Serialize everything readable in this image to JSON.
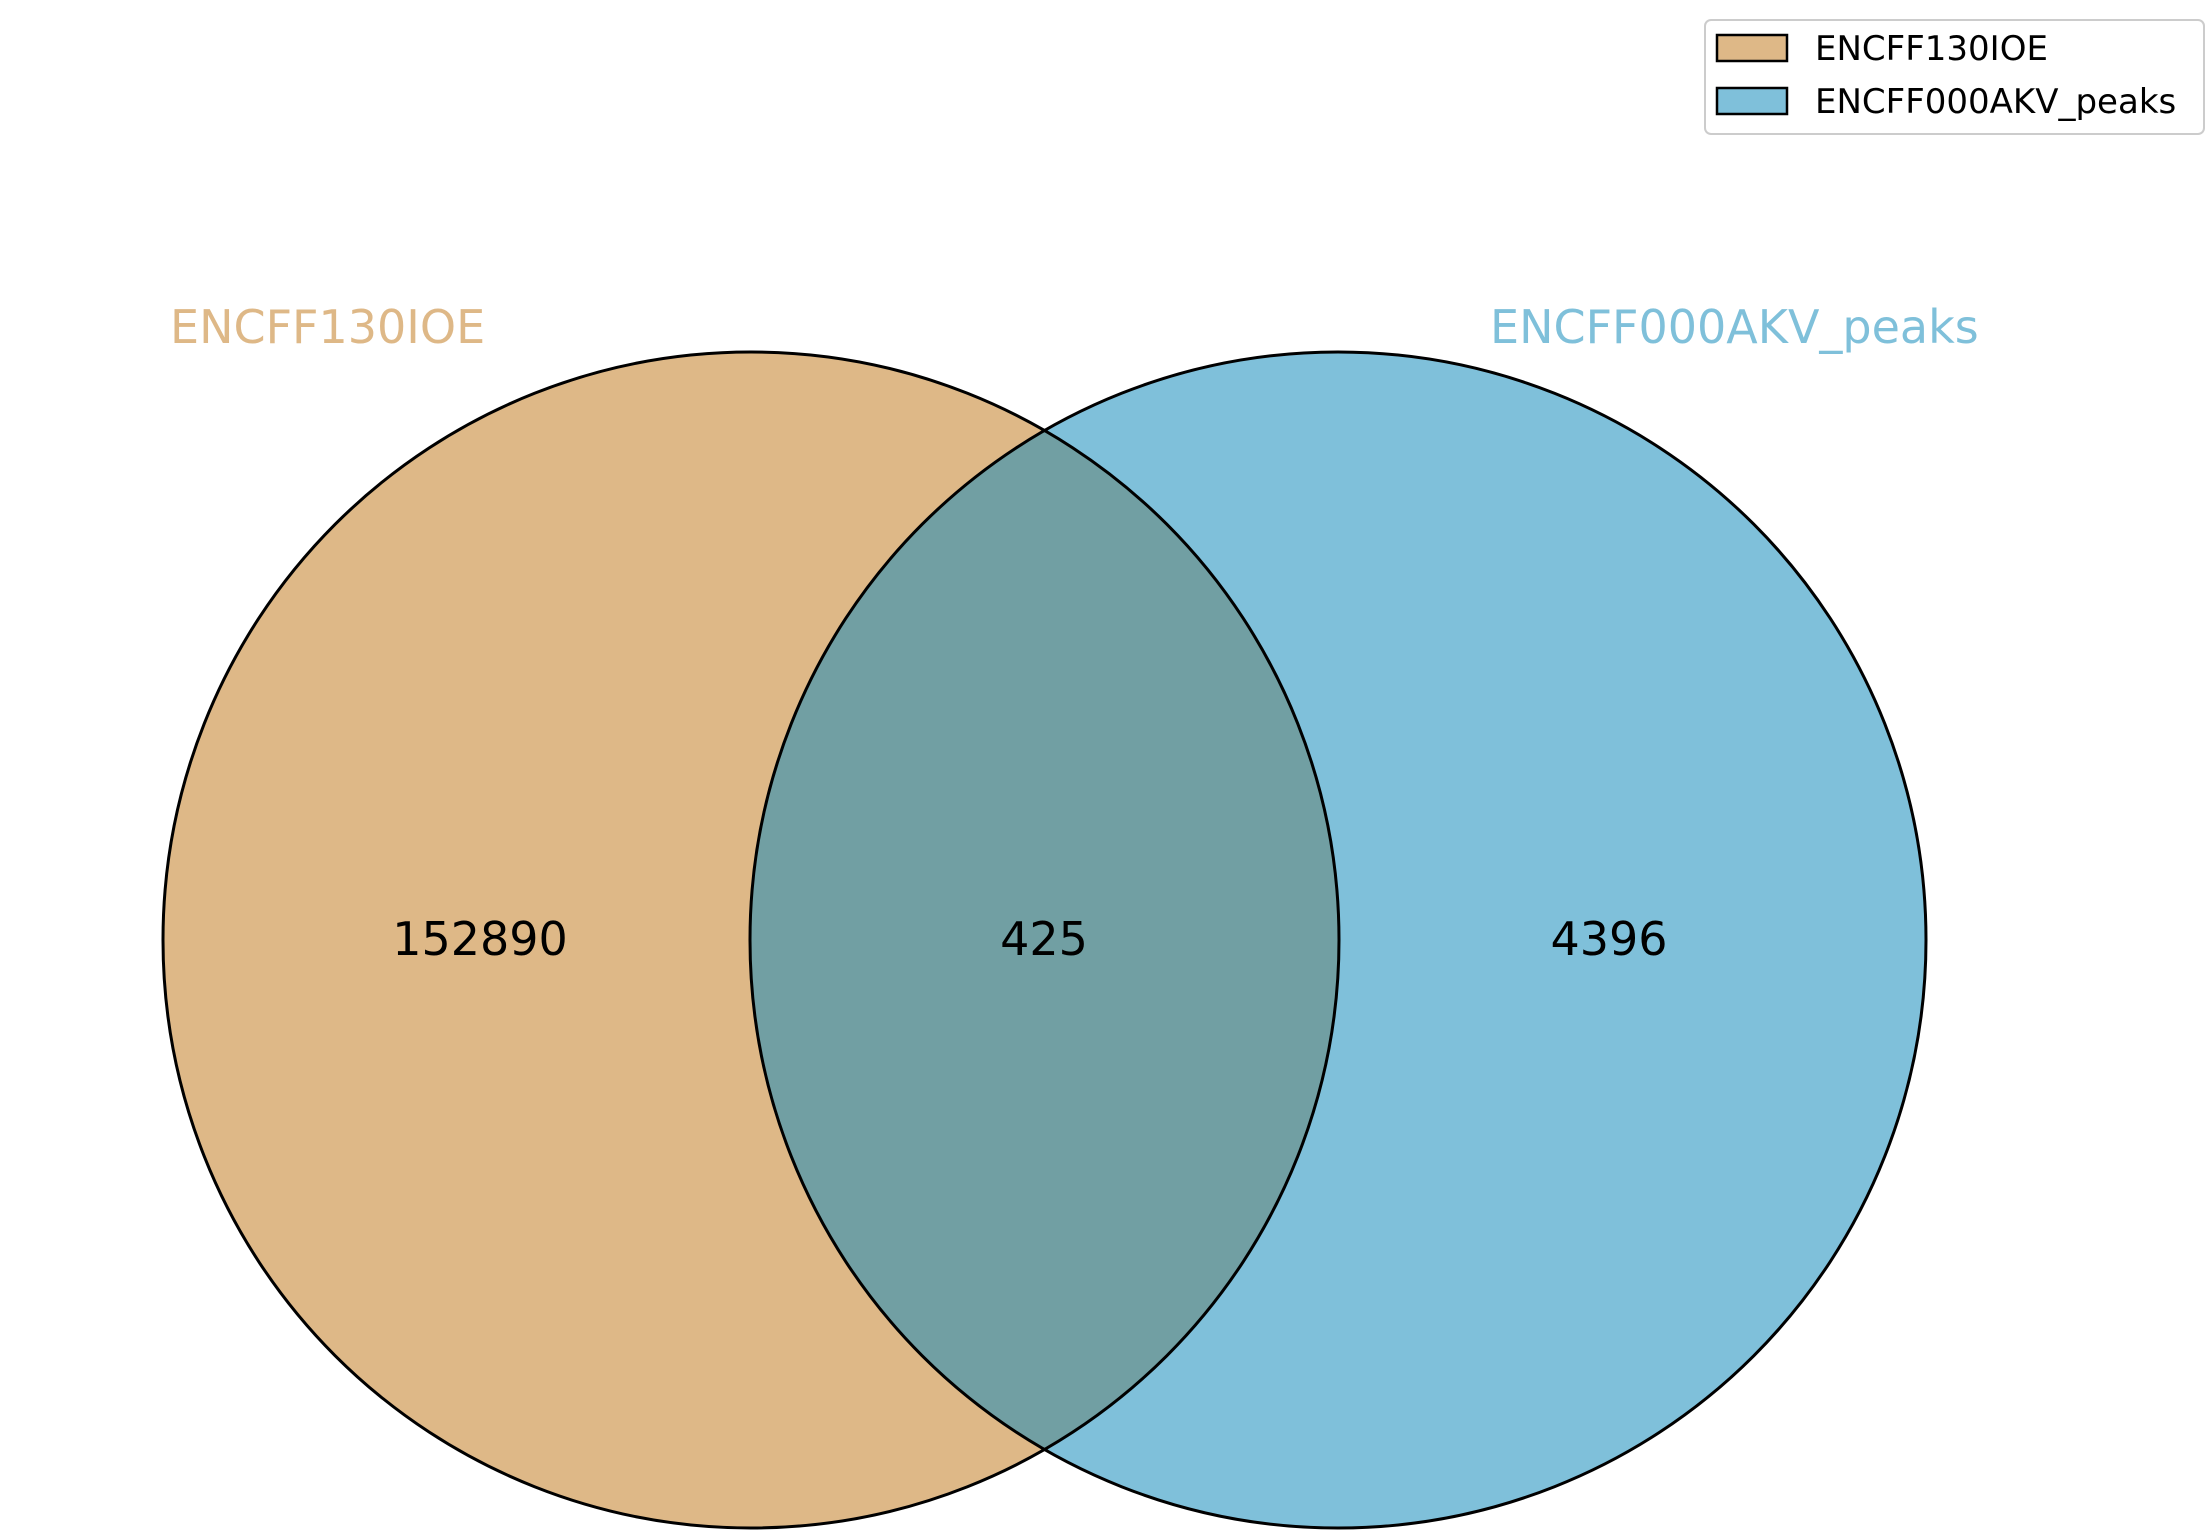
{
  "diagram": {
    "type": "venn2",
    "sets": [
      {
        "name": "ENCFF130IOE",
        "only_count": "152890",
        "color": "#deb887"
      },
      {
        "name": "ENCFF000AKV_peaks",
        "only_count": "4396",
        "color": "#7fc0da"
      }
    ],
    "intersection": {
      "count": "425",
      "color": "#719fa3"
    },
    "outline_color": "#000000",
    "legend": {
      "placement": "top-right",
      "entries": [
        {
          "label": "ENCFF130IOE",
          "color": "#deb887"
        },
        {
          "label": "ENCFF000AKV_peaks",
          "color": "#7fc0da"
        }
      ]
    }
  }
}
